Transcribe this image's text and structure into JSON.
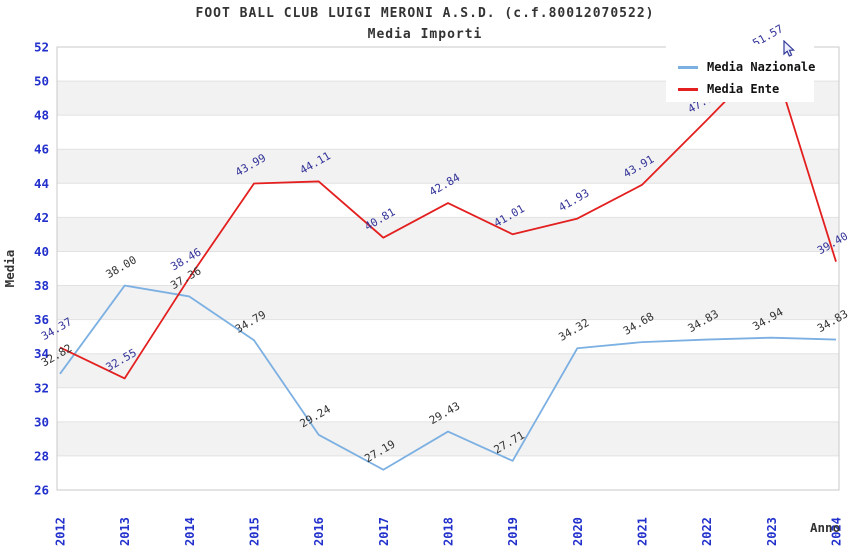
{
  "header": {
    "title": "FOOT BALL CLUB LUIGI MERONI A.S.D. (c.f.80012070522)",
    "subtitle": "Media Importi"
  },
  "legend": {
    "position": "top-right",
    "items": [
      {
        "label": "Media Nazionale",
        "color": "#7cb0e2"
      },
      {
        "label": "Media Ente",
        "color": "#e31f1f"
      }
    ]
  },
  "colors": {
    "axis_tick_blue": "#2230cc",
    "axis_title_dark": "#333333",
    "gridline": "#e2e2e2",
    "plot_border": "#c9c9c9",
    "band_white": "#ffffff",
    "band_gray": "#f2f2f2",
    "series_blue": "#7cb0e2",
    "series_red": "#e31f1f",
    "label_dark": "#333333",
    "label_navy": "#333399"
  },
  "chart_data": {
    "type": "line",
    "title": "FOOT BALL CLUB LUIGI MERONI A.S.D. (c.f.80012070522)",
    "subtitle": "Media Importi",
    "xlabel": "Anno",
    "ylabel": "Media",
    "ylim": [
      26,
      52
    ],
    "y_tick_step": 2,
    "y_ticks": [
      26,
      28,
      30,
      32,
      34,
      36,
      38,
      40,
      42,
      44,
      46,
      48,
      50,
      52
    ],
    "grid": "horizontal-bands",
    "legend_position": "top-right",
    "categories": [
      "2012",
      "2013",
      "2014",
      "2015",
      "2016",
      "2017",
      "2018",
      "2019",
      "2020",
      "2021",
      "2022",
      "2023",
      "2024"
    ],
    "series": [
      {
        "name": "Media Nazionale",
        "color": "#7cb0e2",
        "label_color": "#333333",
        "values": [
          32.82,
          38.0,
          37.36,
          34.79,
          29.24,
          27.19,
          29.43,
          27.71,
          34.32,
          34.68,
          34.83,
          34.94,
          34.83
        ]
      },
      {
        "name": "Media Ente",
        "color": "#e31f1f",
        "label_color": "#333399",
        "values": [
          34.37,
          32.55,
          38.46,
          43.99,
          44.11,
          40.81,
          42.84,
          41.01,
          41.93,
          43.91,
          47.7,
          51.57,
          39.4
        ]
      }
    ]
  }
}
